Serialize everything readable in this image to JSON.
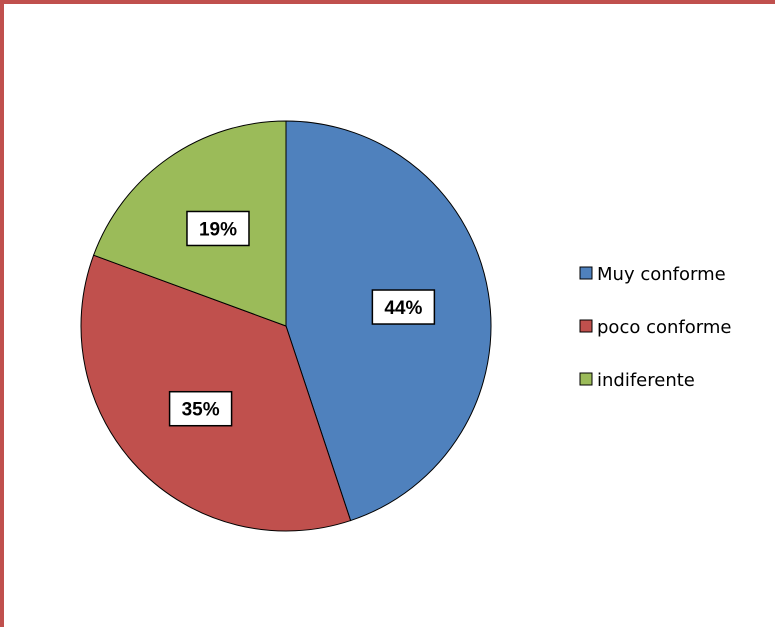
{
  "chart_data": {
    "type": "pie",
    "categories": [
      "Muy conforme",
      "poco conforme",
      "indiferente"
    ],
    "values": [
      44,
      35,
      19
    ],
    "labels": [
      "44%",
      "35%",
      "19%"
    ],
    "colors": [
      "#4F81BD",
      "#C0504D",
      "#9BBB59"
    ],
    "legend_position": "right",
    "title": "",
    "start_angle": "12 o'clock",
    "direction": "clockwise"
  },
  "frame": {
    "border_color": "#C0504D"
  }
}
